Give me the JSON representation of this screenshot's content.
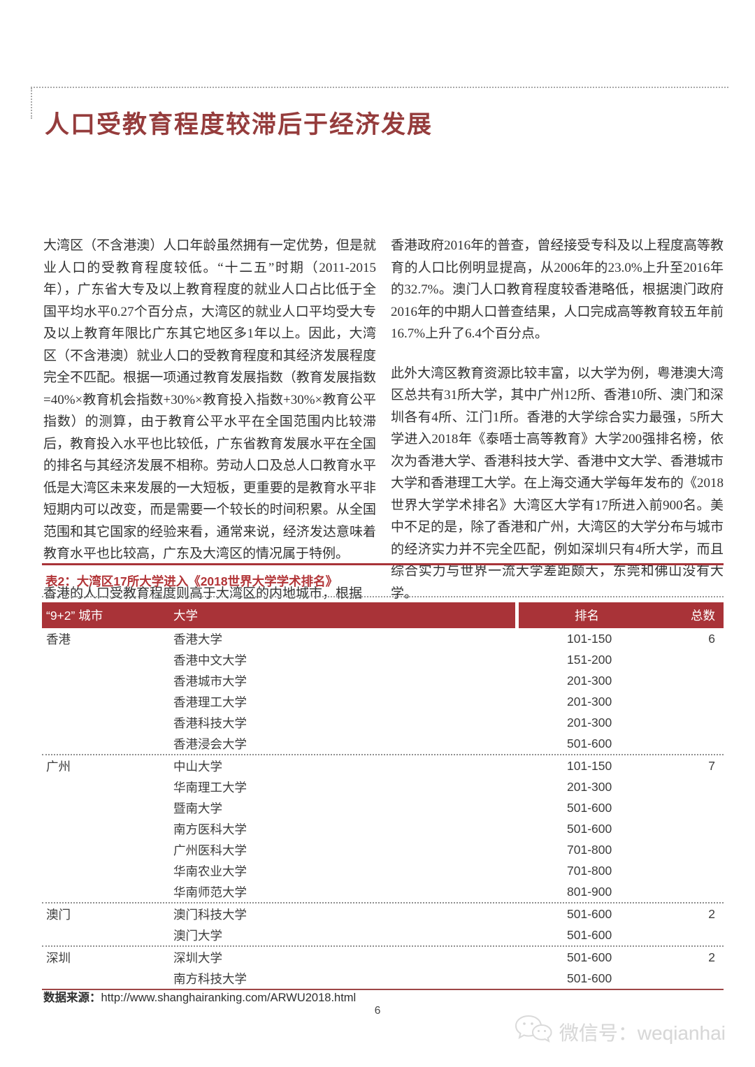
{
  "page": {
    "title": "人口受教育程度较滞后于经济发展",
    "page_number": "6",
    "footer": {
      "source_label": "数据来源：",
      "source_url": "http://www.shanghairanking.com/ARWU2018.html"
    },
    "watermark": {
      "wechat_label": "微信号：weqianhai",
      "icon": "wechat-icon"
    },
    "colors": {
      "title_red": "#953c3c",
      "caption_red": "#b23437",
      "table_header_bg": "#a93338",
      "separator_gray": "#8f8f8f"
    }
  },
  "article": {
    "left_column": {
      "paragraphs": [
        "大湾区（不含港澳）人口年龄虽然拥有一定优势，但是就业人口的受教育程度较低。“十二五”时期（2011-2015年），广东省大专及以上教育程度的就业人口占比低于全国平均水平0.27个百分点，大湾区的就业人口平均受大专及以上教育年限比广东其它地区多1年以上。因此，大湾区（不含港澳）就业人口的受教育程度和其经济发展程度完全不匹配。根据一项通过教育发展指数（教育发展指数=40%×教育机会指数+30%×教育投入指数+30%×教育公平指数）的测算，由于教育公平水平在全国范围内比较滞后，教育投入水平也比较低，广东省教育发展水平在全国的排名与其经济发展不相称。劳动人口及总人口教育水平低是大湾区未来发展的一大短板，更重要的是教育水平非短期内可以改变，而是需要一个较长的时间积累。从全国范围和其它国家的经验来看，通常来说，经济发达意味着教育水平也比较高，广东及大湾区的情况属于特例。",
        "香港的人口受教育程度则高于大湾区的内地城市，根据"
      ]
    },
    "right_column": {
      "paragraphs": [
        "香港政府2016年的普查，曾经接受专科及以上程度高等教育的人口比例明显提高，从2006年的23.0%上升至2016年的32.7%。澳门人口教育程度较香港略低，根据澳门政府2016年的中期人口普查结果，人口完成高等教育较五年前16.7%上升了6.4个百分点。",
        "此外大湾区教育资源比较丰富，以大学为例，粤港澳大湾区总共有31所大学，其中广州12所、香港10所、澳门和深圳各有4所、江门1所。香港的大学综合实力最强，5所大学进入2018年《泰唔士高等教育》大学200强排名榜，依次为香港大学、香港科技大学、香港中文大学、香港城市大学和香港理工大学。在上海交通大学每年发布的《2018世界大学学术排名》大湾区大学有17所进入前900名。美中不足的是，除了香港和广州，大湾区的大学分布与城市的经济实力并不完全匹配，例如深圳只有4所大学，而且综合实力与世界一流大学差距颇大，东莞和佛山没有大学。"
      ]
    }
  },
  "table": {
    "caption": "表2：大湾区17所大学进入《2018世界大学学术排名》",
    "headers": {
      "city": "“9+2” 城市",
      "university": "大学",
      "rank": "排名",
      "total": "总数"
    },
    "groups": [
      {
        "city": "香港",
        "total": "6",
        "rows": [
          {
            "university": "香港大学",
            "rank": "101-150"
          },
          {
            "university": "香港中文大学",
            "rank": "151-200"
          },
          {
            "university": "香港城市大学",
            "rank": "201-300"
          },
          {
            "university": "香港理工大学",
            "rank": "201-300"
          },
          {
            "university": "香港科技大学",
            "rank": "201-300"
          },
          {
            "university": "香港浸会大学",
            "rank": "501-600"
          }
        ]
      },
      {
        "city": "广州",
        "total": "7",
        "rows": [
          {
            "university": "中山大学",
            "rank": "101-150"
          },
          {
            "university": "华南理工大学",
            "rank": "201-300"
          },
          {
            "university": "暨南大学",
            "rank": "501-600"
          },
          {
            "university": "南方医科大学",
            "rank": "501-600"
          },
          {
            "university": "广州医科大学",
            "rank": "701-800"
          },
          {
            "university": "华南农业大学",
            "rank": "701-800"
          },
          {
            "university": "华南师范大学",
            "rank": "801-900"
          }
        ]
      },
      {
        "city": "澳门",
        "total": "2",
        "rows": [
          {
            "university": "澳门科技大学",
            "rank": "501-600"
          },
          {
            "university": "澳门大学",
            "rank": "501-600"
          }
        ]
      },
      {
        "city": "深圳",
        "total": "2",
        "rows": [
          {
            "university": "深圳大学",
            "rank": "501-600"
          },
          {
            "university": "南方科技大学",
            "rank": "501-600"
          }
        ]
      }
    ]
  }
}
